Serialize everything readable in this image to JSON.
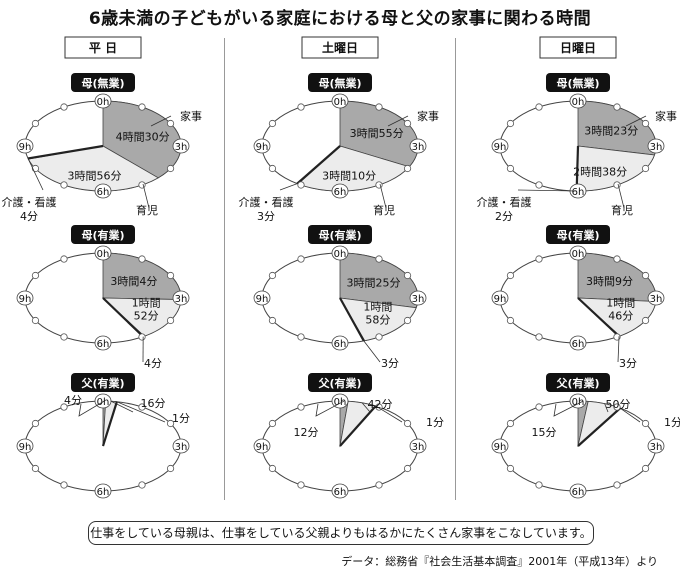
{
  "title": "6歳未満の子どもがいる家庭における母と父の家事に関わる時間",
  "columns": [
    "平 日",
    "土曜日",
    "日曜日"
  ],
  "clock_labels": {
    "top": "0h",
    "right": "3h",
    "bottom": "6h",
    "left": "9h"
  },
  "callout_labels": {
    "kaji": "家事",
    "ikuji": "育児",
    "kaigo": "介護・看護"
  },
  "summary": "仕事をしている母親は、仕事をしている父親よりもはるかにたくさん家事をこなしています。",
  "source": "データ：総務省『社会生活基本調査』2001年（平成13年）より",
  "colors": {
    "kaji": "#a9a9a9",
    "ikuji": "#ececec",
    "kaigo": "#222222"
  },
  "chart_data": [
    {
      "type": "pie",
      "column": "平 日",
      "title": "母(無業)",
      "unit": "minutes, 12h clock face",
      "slices": [
        {
          "name": "家事",
          "minutes": 270,
          "label": "4時間30分"
        },
        {
          "name": "育児",
          "minutes": 236,
          "label": "3時間56分"
        },
        {
          "name": "介護・看護",
          "minutes": 4,
          "label": "4分"
        }
      ]
    },
    {
      "type": "pie",
      "column": "土曜日",
      "title": "母(無業)",
      "unit": "minutes, 12h clock face",
      "slices": [
        {
          "name": "家事",
          "minutes": 235,
          "label": "3時間55分"
        },
        {
          "name": "育児",
          "minutes": 190,
          "label": "3時間10分"
        },
        {
          "name": "介護・看護",
          "minutes": 3,
          "label": "3分"
        }
      ]
    },
    {
      "type": "pie",
      "column": "日曜日",
      "title": "母(無業)",
      "unit": "minutes, 12h clock face",
      "slices": [
        {
          "name": "家事",
          "minutes": 203,
          "label": "3時間23分"
        },
        {
          "name": "育児",
          "minutes": 158,
          "label": "2時間38分"
        },
        {
          "name": "介護・看護",
          "minutes": 2,
          "label": "2分"
        }
      ]
    },
    {
      "type": "pie",
      "column": "平 日",
      "title": "母(有業)",
      "unit": "minutes, 12h clock face",
      "slices": [
        {
          "name": "家事",
          "minutes": 184,
          "label": "3時間4分"
        },
        {
          "name": "育児",
          "minutes": 112,
          "label": "1時間\n52分"
        },
        {
          "name": "介護・看護",
          "minutes": 4,
          "label": "4分"
        }
      ]
    },
    {
      "type": "pie",
      "column": "土曜日",
      "title": "母(有業)",
      "unit": "minutes, 12h clock face",
      "slices": [
        {
          "name": "家事",
          "minutes": 205,
          "label": "3時間25分"
        },
        {
          "name": "育児",
          "minutes": 118,
          "label": "1時間\n58分"
        },
        {
          "name": "介護・看護",
          "minutes": 3,
          "label": "3分"
        }
      ]
    },
    {
      "type": "pie",
      "column": "日曜日",
      "title": "母(有業)",
      "unit": "minutes, 12h clock face",
      "slices": [
        {
          "name": "家事",
          "minutes": 189,
          "label": "3時間9分"
        },
        {
          "name": "育児",
          "minutes": 106,
          "label": "1時間\n46分"
        },
        {
          "name": "介護・看護",
          "minutes": 3,
          "label": "3分"
        }
      ]
    },
    {
      "type": "pie",
      "column": "平 日",
      "title": "父(有業)",
      "unit": "minutes, 12h clock face",
      "slices": [
        {
          "name": "家事",
          "minutes": 4,
          "label": "4分"
        },
        {
          "name": "育児",
          "minutes": 16,
          "label": "16分"
        },
        {
          "name": "介護・看護",
          "minutes": 1,
          "label": "1分"
        }
      ]
    },
    {
      "type": "pie",
      "column": "土曜日",
      "title": "父(有業)",
      "unit": "minutes, 12h clock face",
      "slices": [
        {
          "name": "家事",
          "minutes": 12,
          "label": "12分"
        },
        {
          "name": "育児",
          "minutes": 42,
          "label": "42分"
        },
        {
          "name": "介護・看護",
          "minutes": 1,
          "label": "1分"
        }
      ]
    },
    {
      "type": "pie",
      "column": "日曜日",
      "title": "父(有業)",
      "unit": "minutes, 12h clock face",
      "slices": [
        {
          "name": "家事",
          "minutes": 15,
          "label": "15分"
        },
        {
          "name": "育児",
          "minutes": 50,
          "label": "50分"
        },
        {
          "name": "介護・看護",
          "minutes": 1,
          "label": "1分"
        }
      ]
    }
  ]
}
